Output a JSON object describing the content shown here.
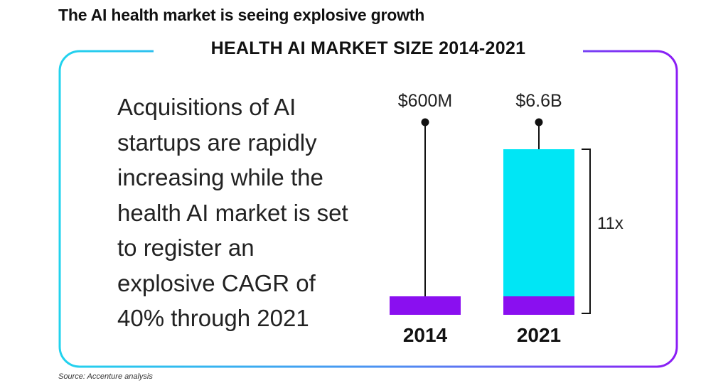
{
  "header": {
    "title": "The AI health market is seeing explosive growth"
  },
  "panel": {
    "description": "Acquisitions of AI startups are rapidly increasing while the health AI market is set to register an explosive CAGR of 40% through 2021"
  },
  "chart_data": {
    "type": "bar",
    "title": "HEALTH AI MARKET SIZE 2014-2021",
    "categories": [
      "2014",
      "2021"
    ],
    "values": [
      0.6,
      6.6
    ],
    "value_labels": [
      "$600M",
      "$6.6B"
    ],
    "unit": "USD billions",
    "growth_label": "11x",
    "colors": {
      "base": "#8a0ff0",
      "growth": "#00e6f5",
      "frame_start": "#22d3ee",
      "frame_end": "#8b1cf5"
    }
  },
  "footer": {
    "source": "Source: Accenture analysis"
  }
}
